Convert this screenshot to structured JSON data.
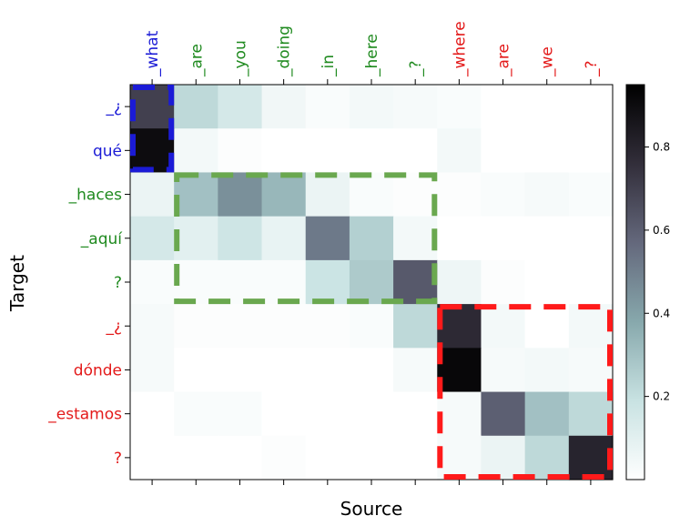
{
  "chart_data": {
    "type": "heatmap",
    "xlabel": "Source",
    "ylabel": "Target",
    "x_labels": [
      "_what",
      "_are",
      "_you",
      "_doing",
      "_in",
      "_here",
      "_?",
      "_where",
      "_are",
      "_we",
      "_?"
    ],
    "y_labels": [
      "_¿",
      "qué",
      "_haces",
      "_aquí",
      "?",
      "_¿",
      "dónde",
      "_estamos",
      "?"
    ],
    "x_label_colors": [
      "#1b1bd6",
      "#1f8a1f",
      "#1f8a1f",
      "#1f8a1f",
      "#1f8a1f",
      "#1f8a1f",
      "#1f8a1f",
      "#e31a1a",
      "#e31a1a",
      "#e31a1a",
      "#e31a1a"
    ],
    "y_label_colors": [
      "#1b1bd6",
      "#1b1bd6",
      "#1f8a1f",
      "#1f8a1f",
      "#1f8a1f",
      "#e31a1a",
      "#e31a1a",
      "#e31a1a",
      "#e31a1a"
    ],
    "values": [
      [
        0.7,
        0.22,
        0.15,
        0.05,
        0.02,
        0.04,
        0.03,
        0.02,
        0.0,
        0.0,
        0.0
      ],
      [
        0.9,
        0.04,
        0.01,
        0.0,
        0.0,
        0.0,
        0.0,
        0.04,
        0.0,
        0.0,
        0.0
      ],
      [
        0.07,
        0.3,
        0.45,
        0.33,
        0.07,
        0.02,
        0.01,
        0.01,
        0.02,
        0.03,
        0.02
      ],
      [
        0.15,
        0.1,
        0.17,
        0.08,
        0.52,
        0.25,
        0.04,
        0.0,
        0.0,
        0.0,
        0.0
      ],
      [
        0.02,
        0.02,
        0.02,
        0.02,
        0.18,
        0.27,
        0.62,
        0.06,
        0.01,
        0.0,
        0.0
      ],
      [
        0.03,
        0.01,
        0.01,
        0.01,
        0.01,
        0.02,
        0.22,
        0.78,
        0.04,
        0.0,
        0.04
      ],
      [
        0.03,
        0.0,
        0.0,
        0.0,
        0.0,
        0.0,
        0.03,
        0.92,
        0.03,
        0.04,
        0.03
      ],
      [
        0.0,
        0.02,
        0.02,
        0.0,
        0.0,
        0.0,
        0.0,
        0.03,
        0.6,
        0.3,
        0.22
      ],
      [
        0.0,
        0.0,
        0.0,
        0.01,
        0.0,
        0.0,
        0.0,
        0.03,
        0.07,
        0.22,
        0.8
      ]
    ],
    "colorbar": {
      "min": 0.0,
      "max": 0.95,
      "ticks": [
        0.2,
        0.4,
        0.6,
        0.8
      ],
      "tick_labels": [
        "0.2",
        "0.4",
        "0.6",
        "0.8"
      ]
    },
    "highlight_boxes": [
      {
        "color": "#1b1bd6",
        "col_start": 0,
        "col_end": 0,
        "row_start": 0,
        "row_end": 1
      },
      {
        "color": "#6aa84f",
        "col_start": 1,
        "col_end": 6,
        "row_start": 2,
        "row_end": 4
      },
      {
        "color": "#ff1a1a",
        "col_start": 7,
        "col_end": 10,
        "row_start": 5,
        "row_end": 8
      }
    ]
  }
}
